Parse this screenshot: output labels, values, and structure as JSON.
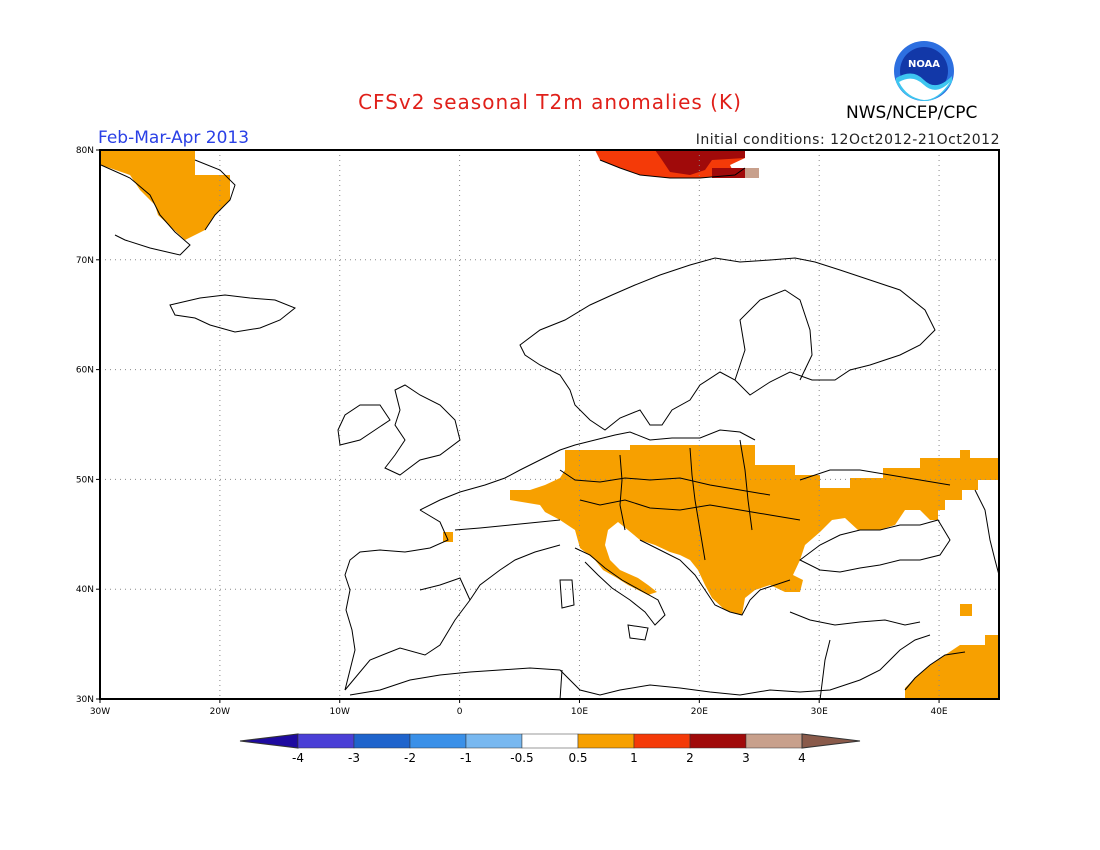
{
  "header": {
    "title": "CFSv2 seasonal T2m anomalies (K)",
    "period": "Feb-Mar-Apr 2013",
    "initial_conditions": "Initial conditions: 12Oct2012-21Oct2012",
    "agency": "NWS/NCEP/CPC",
    "logo_text": "NOAA"
  },
  "map": {
    "lon_range": [
      -30,
      45
    ],
    "lat_range": [
      30,
      80
    ],
    "lat_ticks": [
      {
        "value": 80,
        "label": "80N"
      },
      {
        "value": 70,
        "label": "70N"
      },
      {
        "value": 60,
        "label": "60N"
      },
      {
        "value": 50,
        "label": "50N"
      },
      {
        "value": 40,
        "label": "40N"
      },
      {
        "value": 30,
        "label": "30N"
      }
    ],
    "lon_ticks": [
      {
        "value": -30,
        "label": "30W"
      },
      {
        "value": -20,
        "label": "20W"
      },
      {
        "value": -10,
        "label": "10W"
      },
      {
        "value": 0,
        "label": "0"
      },
      {
        "value": 10,
        "label": "10E"
      },
      {
        "value": 20,
        "label": "20E"
      },
      {
        "value": 30,
        "label": "30E"
      },
      {
        "value": 40,
        "label": "40E"
      }
    ],
    "grid": "dotted"
  },
  "colorbar": {
    "bins": [
      {
        "color": "#1e0aa0"
      },
      {
        "color": "#4a3fd6"
      },
      {
        "color": "#1f64cc"
      },
      {
        "color": "#3a90e8"
      },
      {
        "color": "#78b8f0"
      },
      {
        "color": "#ffffff"
      },
      {
        "color": "#f7a000"
      },
      {
        "color": "#f43a08"
      },
      {
        "color": "#a00a0a"
      },
      {
        "color": "#c8a08c"
      },
      {
        "color": "#8a5a4a"
      }
    ],
    "labels": [
      "-4",
      "-3",
      "-2",
      "-1",
      "-0.5",
      "0.5",
      "1",
      "2",
      "3",
      "4"
    ]
  },
  "anomaly_colors": {
    "orange": "#f7a000",
    "red": "#f43a08",
    "darkred": "#a00a0a",
    "tan": "#c8a08c"
  }
}
